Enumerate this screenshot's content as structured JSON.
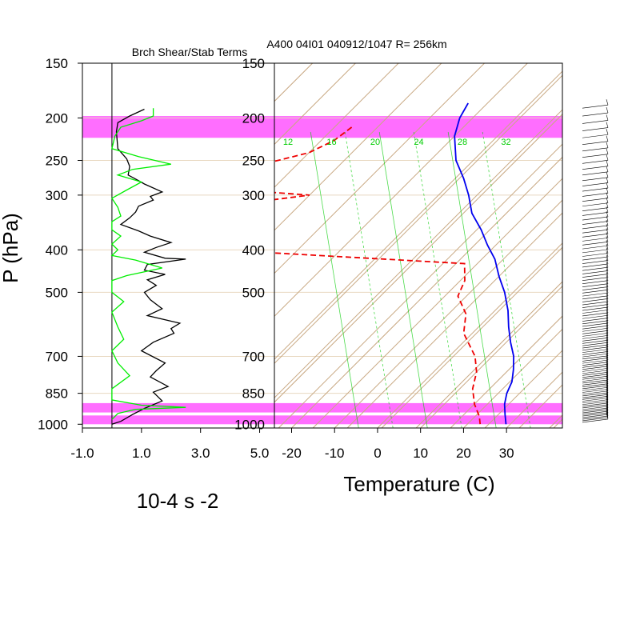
{
  "header": {
    "left_title": "Brch Shear/Stab Terms",
    "right_title": "A400 04I01 040912/1047 R= 256km"
  },
  "colors": {
    "band": "#ff55ff",
    "brch_shear": "#000000",
    "stab": "#00ee00",
    "temperature": "#0000ee",
    "dewpoint": "#ee0000",
    "skewt_grid": "#c8a882",
    "mixing_ratio": "#00cc00",
    "pressure_lines": "#e8d8c0"
  },
  "chart_data": [
    {
      "type": "line",
      "title": "Brch Shear/Stab Terms",
      "xlabel": "10-4 s -2",
      "ylabel": "P (hPa)",
      "xlim": [
        -1.0,
        5.5
      ],
      "xticks": [
        -1.0,
        1.0,
        3.0,
        5.0
      ],
      "xtick_labels": [
        "-1.0",
        "1.0",
        "3.0",
        "5.0"
      ],
      "ylim": [
        1020,
        150
      ],
      "yscale": "log",
      "yticks": [
        150,
        200,
        250,
        300,
        400,
        500,
        700,
        850,
        1000
      ],
      "ytick_labels": [
        "150",
        "200",
        "250",
        "300",
        "400",
        "500",
        "700",
        "850",
        "1000"
      ],
      "highlight_bands": [
        [
          198,
          222
        ],
        [
          895,
          940
        ],
        [
          955,
          1000
        ]
      ],
      "series": [
        {
          "role": "brch_shear",
          "color": "#000000",
          "points": [
            [
              1.1,
              191
            ],
            [
              0.6,
              198
            ],
            [
              0.2,
              205
            ],
            [
              0.15,
              215
            ],
            [
              0.2,
              235
            ],
            [
              0.5,
              248
            ],
            [
              0.6,
              258
            ],
            [
              0.55,
              270
            ],
            [
              0.9,
              278
            ],
            [
              1.1,
              283
            ],
            [
              1.7,
              295
            ],
            [
              1.3,
              302
            ],
            [
              1.4,
              308
            ],
            [
              0.9,
              318
            ],
            [
              0.8,
              328
            ],
            [
              0.6,
              338
            ],
            [
              0.3,
              350
            ],
            [
              0.9,
              362
            ],
            [
              1.3,
              372
            ],
            [
              2.0,
              385
            ],
            [
              1.5,
              395
            ],
            [
              1.1,
              405
            ],
            [
              1.8,
              418
            ],
            [
              2.5,
              420
            ],
            [
              1.2,
              432
            ],
            [
              1.1,
              445
            ],
            [
              1.8,
              455
            ],
            [
              1.2,
              468
            ],
            [
              1.5,
              482
            ],
            [
              1.1,
              500
            ],
            [
              1.3,
              520
            ],
            [
              1.7,
              545
            ],
            [
              1.2,
              565
            ],
            [
              2.3,
              588
            ],
            [
              2.0,
              605
            ],
            [
              2.1,
              620
            ],
            [
              1.4,
              650
            ],
            [
              1.0,
              680
            ],
            [
              1.8,
              725
            ],
            [
              1.5,
              755
            ],
            [
              1.3,
              780
            ],
            [
              1.9,
              820
            ],
            [
              1.4,
              845
            ],
            [
              1.7,
              885
            ],
            [
              1.1,
              920
            ],
            [
              0.7,
              950
            ],
            [
              0.3,
              985
            ],
            [
              0.0,
              1000
            ]
          ]
        },
        {
          "role": "stab",
          "color": "#00ee00",
          "points": [
            [
              1.4,
              190
            ],
            [
              1.4,
              198
            ],
            [
              1.0,
              203
            ],
            [
              0.3,
              210
            ],
            [
              0.1,
              220
            ],
            [
              0.0,
              235
            ],
            [
              0.9,
              245
            ],
            [
              2.0,
              255
            ],
            [
              0.7,
              262
            ],
            [
              0.2,
              270
            ],
            [
              1.0,
              280
            ],
            [
              0.5,
              292
            ],
            [
              0.0,
              305
            ],
            [
              0.2,
              320
            ],
            [
              0.3,
              335
            ],
            [
              0.0,
              345
            ],
            [
              0.0,
              360
            ],
            [
              0.3,
              372
            ],
            [
              0.0,
              388
            ],
            [
              0.2,
              400
            ],
            [
              0.0,
              412
            ],
            [
              0.8,
              422
            ],
            [
              1.7,
              440
            ],
            [
              0.5,
              458
            ],
            [
              0.0,
              470
            ],
            [
              0.0,
              500
            ],
            [
              0.4,
              525
            ],
            [
              0.0,
              555
            ],
            [
              0.2,
              600
            ],
            [
              0.4,
              640
            ],
            [
              0.0,
              680
            ],
            [
              0.2,
              725
            ],
            [
              0.6,
              775
            ],
            [
              0.0,
              830
            ],
            [
              0.0,
              880
            ],
            [
              1.0,
              905
            ],
            [
              2.5,
              915
            ],
            [
              0.8,
              925
            ],
            [
              0.2,
              945
            ],
            [
              0.0,
              975
            ]
          ]
        }
      ]
    },
    {
      "type": "line",
      "title": "A400 04I01 040912/1047 R= 256km",
      "xlabel": "Temperature (C)",
      "xlim": [
        -24,
        43
      ],
      "xticks": [
        -20,
        -10,
        0,
        10,
        20,
        30
      ],
      "xtick_labels": [
        "-20",
        "-10",
        "0",
        "10",
        "20",
        "30"
      ],
      "ylim": [
        1020,
        150
      ],
      "yscale": "log",
      "yticks": [
        150,
        200,
        250,
        300,
        400,
        500,
        700,
        850,
        1000
      ],
      "ytick_labels": [
        "150",
        "200",
        "250",
        "300",
        "400",
        "500",
        "700",
        "850",
        "1000"
      ],
      "highlight_bands": [
        [
          198,
          222
        ],
        [
          895,
          940
        ],
        [
          955,
          1000
        ]
      ],
      "mixing_ratio_labels": [
        "12",
        "16",
        "20",
        "24",
        "28",
        "32"
      ],
      "mixing_ratio_values": [
        12,
        16,
        20,
        24,
        28,
        32
      ],
      "series": [
        {
          "role": "temperature",
          "color": "#0000ee",
          "points": [
            [
              -54.5,
              185
            ],
            [
              -53,
              200
            ],
            [
              -50,
              220
            ],
            [
              -44,
              250
            ],
            [
              -38,
              275
            ],
            [
              -33,
              300
            ],
            [
              -28,
              330
            ],
            [
              -22,
              360
            ],
            [
              -17,
              390
            ],
            [
              -12,
              420
            ],
            [
              -7,
              460
            ],
            [
              -2,
              500
            ],
            [
              3,
              550
            ],
            [
              7,
              600
            ],
            [
              11,
              650
            ],
            [
              15,
              700
            ],
            [
              18,
              750
            ],
            [
              20.5,
              800
            ],
            [
              22,
              850
            ],
            [
              24,
              900
            ],
            [
              26.5,
              950
            ],
            [
              29,
              1000
            ]
          ]
        },
        {
          "role": "dewpoint",
          "color": "#ee0000",
          "points": [
            [
              -76,
              210
            ],
            [
              -77,
              225
            ],
            [
              -80,
              240
            ],
            [
              -88,
              255
            ],
            [
              -95,
              270
            ],
            [
              -92,
              290
            ],
            [
              -70,
              300
            ],
            [
              -80,
              310
            ],
            [
              -88,
              340
            ],
            [
              -84,
              370
            ],
            [
              -75,
              395
            ],
            [
              -68,
              405
            ],
            [
              -18,
              430
            ],
            [
              -14,
              470
            ],
            [
              -12,
              510
            ],
            [
              -6,
              560
            ],
            [
              -2,
              620
            ],
            [
              6,
              700
            ],
            [
              10,
              760
            ],
            [
              13,
              830
            ],
            [
              17,
              900
            ],
            [
              21,
              960
            ],
            [
              23,
              1000
            ]
          ]
        }
      ],
      "wind_barbs": "right-side column, 200-1000 hPa"
    }
  ]
}
